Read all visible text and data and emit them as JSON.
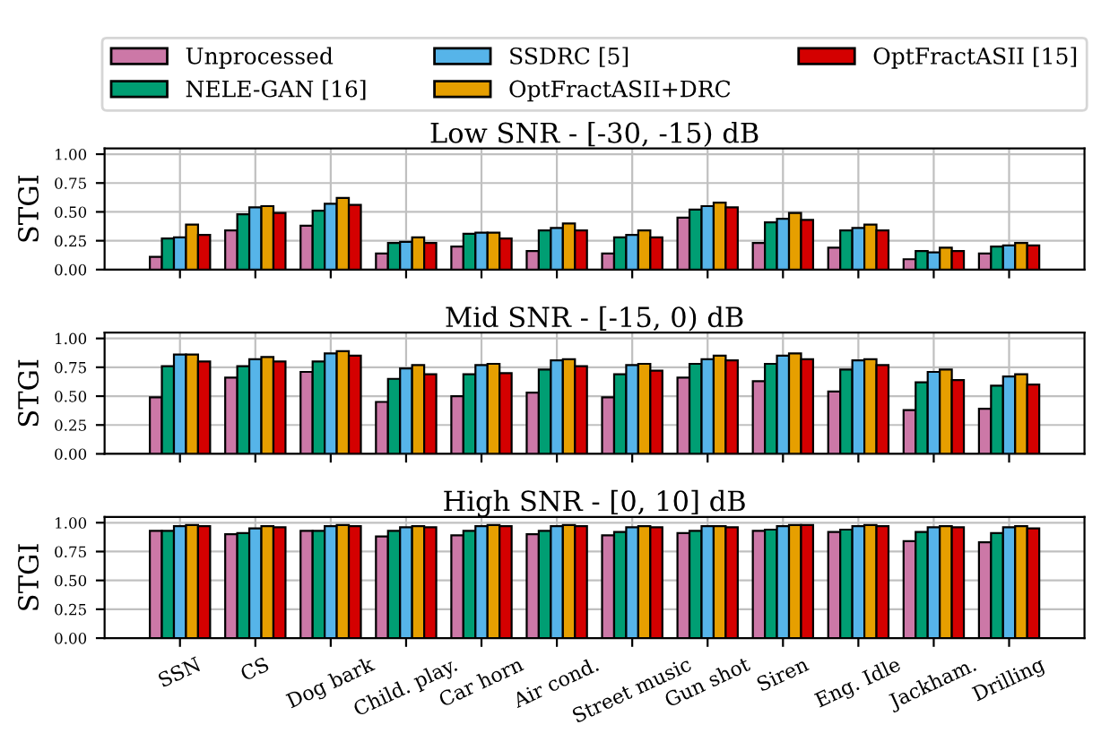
{
  "chart_data": [
    {
      "type": "bar",
      "title": "Low SNR - [-30, -15) dB",
      "ylabel": "STGI",
      "categories": [
        null,
        null,
        null,
        null,
        null,
        null,
        null,
        null,
        null,
        null,
        null,
        null
      ],
      "ylim": [
        0,
        1.05
      ],
      "yticks": [
        {
          "value": 0,
          "label": "0.00"
        },
        {
          "value": 0.25,
          "label": "0.25"
        },
        {
          "value": 0.5,
          "label": "0.50"
        },
        {
          "value": 0.75,
          "label": "0.75"
        },
        {
          "value": 1,
          "label": "1.00"
        }
      ],
      "grid": true,
      "legend": "top",
      "tick_labels": "y",
      "series": [
        {
          "name": "Unprocessed",
          "color": "#cc78a7",
          "values": [
            0.11,
            0.34,
            0.38,
            0.14,
            0.2,
            0.16,
            0.14,
            0.45,
            0.23,
            0.19,
            0.09,
            0.14
          ]
        },
        {
          "name": "NELE-GAN [16]",
          "color": "#009e73",
          "values": [
            0.27,
            0.48,
            0.51,
            0.23,
            0.31,
            0.34,
            0.28,
            0.52,
            0.41,
            0.34,
            0.16,
            0.2
          ]
        },
        {
          "name": "SSDRC [5]",
          "color": "#56b4e9",
          "values": [
            0.28,
            0.54,
            0.57,
            0.24,
            0.32,
            0.36,
            0.3,
            0.55,
            0.44,
            0.36,
            0.15,
            0.21
          ]
        },
        {
          "name": "OptFractASII+DRC",
          "color": "#e69f00",
          "values": [
            0.39,
            0.55,
            0.62,
            0.28,
            0.32,
            0.4,
            0.34,
            0.58,
            0.49,
            0.39,
            0.19,
            0.23
          ]
        },
        {
          "name": "OptFractASII [15]",
          "color": "#d40000",
          "values": [
            0.3,
            0.49,
            0.56,
            0.23,
            0.27,
            0.34,
            0.28,
            0.54,
            0.43,
            0.34,
            0.16,
            0.21
          ]
        }
      ]
    },
    {
      "type": "bar",
      "title": "Mid SNR - [-15, 0) dB",
      "ylabel": "STGI",
      "categories": [
        null,
        null,
        null,
        null,
        null,
        null,
        null,
        null,
        null,
        null,
        null,
        null
      ],
      "ylim": [
        0,
        1.05
      ],
      "yticks": [
        {
          "value": 0,
          "label": "0.00"
        },
        {
          "value": 0.25,
          "label": "0.25"
        },
        {
          "value": 0.5,
          "label": "0.50"
        },
        {
          "value": 0.75,
          "label": "0.75"
        },
        {
          "value": 1,
          "label": "1.00"
        }
      ],
      "grid": true,
      "tick_labels": "y",
      "series": [
        {
          "color": "#cc78a7",
          "values": [
            0.49,
            0.66,
            0.71,
            0.45,
            0.5,
            0.53,
            0.49,
            0.66,
            0.63,
            0.54,
            0.38,
            0.39
          ]
        },
        {
          "color": "#009e73",
          "values": [
            0.76,
            0.76,
            0.8,
            0.65,
            0.69,
            0.73,
            0.69,
            0.78,
            0.78,
            0.73,
            0.62,
            0.59
          ]
        },
        {
          "color": "#56b4e9",
          "values": [
            0.86,
            0.82,
            0.87,
            0.74,
            0.77,
            0.81,
            0.77,
            0.82,
            0.85,
            0.81,
            0.71,
            0.67
          ]
        },
        {
          "color": "#e69f00",
          "values": [
            0.86,
            0.84,
            0.89,
            0.77,
            0.78,
            0.82,
            0.78,
            0.85,
            0.87,
            0.82,
            0.73,
            0.69
          ]
        },
        {
          "color": "#d40000",
          "values": [
            0.8,
            0.8,
            0.85,
            0.69,
            0.7,
            0.76,
            0.72,
            0.81,
            0.82,
            0.77,
            0.64,
            0.6
          ]
        }
      ]
    },
    {
      "type": "bar",
      "title": "High SNR - [0, 10] dB",
      "ylabel": "STGI",
      "categories": [
        "SSN",
        "CS",
        "Dog bark",
        "Child. play.",
        "Car horn",
        "Air cond.",
        "Street music",
        "Gun shot",
        "Siren",
        "Eng. Idle",
        "Jackham.",
        "Drilling"
      ],
      "ylim": [
        0,
        1.05
      ],
      "yticks": [
        {
          "value": 0,
          "label": "0.00"
        },
        {
          "value": 0.25,
          "label": "0.25"
        },
        {
          "value": 0.5,
          "label": "0.50"
        },
        {
          "value": 0.75,
          "label": "0.75"
        },
        {
          "value": 1,
          "label": "1.00"
        }
      ],
      "grid": true,
      "series": [
        {
          "color": "#cc78a7",
          "values": [
            0.93,
            0.9,
            0.93,
            0.88,
            0.89,
            0.9,
            0.89,
            0.91,
            0.93,
            0.92,
            0.84,
            0.83
          ]
        },
        {
          "color": "#009e73",
          "values": [
            0.93,
            0.91,
            0.93,
            0.93,
            0.93,
            0.93,
            0.92,
            0.93,
            0.94,
            0.94,
            0.92,
            0.91
          ]
        },
        {
          "color": "#56b4e9",
          "values": [
            0.97,
            0.95,
            0.97,
            0.96,
            0.97,
            0.97,
            0.96,
            0.97,
            0.97,
            0.97,
            0.96,
            0.96
          ]
        },
        {
          "color": "#e69f00",
          "values": [
            0.98,
            0.97,
            0.98,
            0.97,
            0.98,
            0.98,
            0.97,
            0.97,
            0.98,
            0.98,
            0.97,
            0.97
          ]
        },
        {
          "color": "#d40000",
          "values": [
            0.97,
            0.96,
            0.97,
            0.96,
            0.97,
            0.97,
            0.96,
            0.96,
            0.98,
            0.97,
            0.96,
            0.95
          ]
        }
      ]
    }
  ]
}
